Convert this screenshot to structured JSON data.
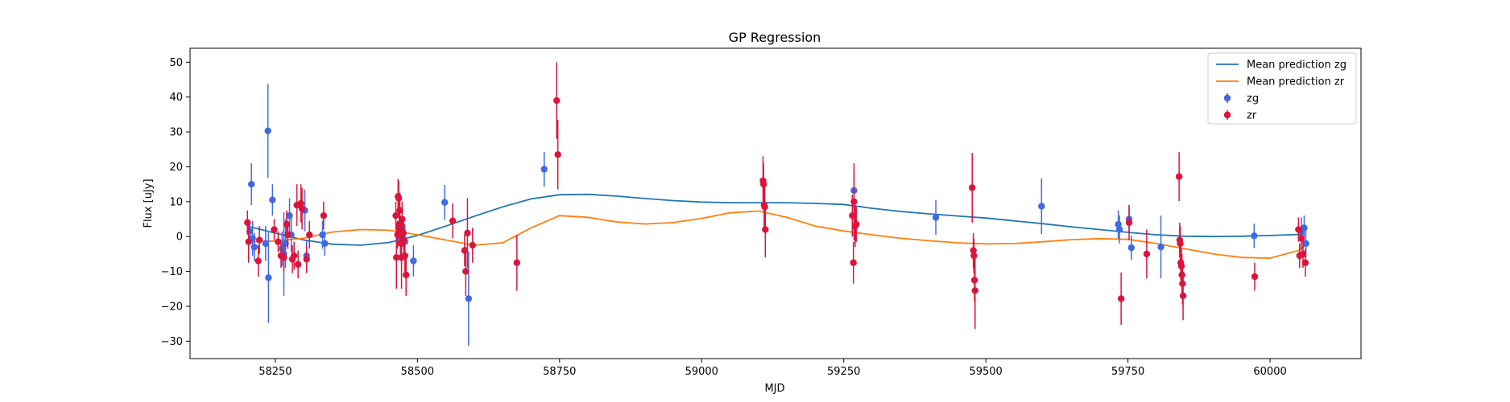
{
  "chart_data": {
    "type": "scatter",
    "title": "GP Regression",
    "xlabel": "MJD",
    "ylabel": "Flux [uJy]",
    "xlim": [
      58100,
      60160
    ],
    "ylim": [
      -35,
      54
    ],
    "xticks": [
      58250,
      58500,
      58750,
      59000,
      59250,
      59500,
      59750,
      60000
    ],
    "yticks": [
      -30,
      -20,
      -10,
      0,
      10,
      20,
      30,
      40,
      50
    ],
    "legend_position": "upper right",
    "lines": [
      {
        "name": "Mean prediction zg",
        "color": "#1f77b4",
        "x": [
          58200,
          58250,
          58300,
          58350,
          58400,
          58450,
          58500,
          58550,
          58600,
          58650,
          58700,
          58750,
          58800,
          58850,
          58900,
          58950,
          59000,
          59050,
          59100,
          59150,
          59200,
          59250,
          59300,
          59350,
          59400,
          59450,
          59500,
          59550,
          59600,
          59650,
          59700,
          59750,
          59800,
          59850,
          59900,
          59950,
          60000,
          60050,
          60060
        ],
        "y": [
          3.0,
          1.0,
          -1.0,
          -2.2,
          -2.5,
          -1.7,
          0.3,
          3.0,
          5.8,
          8.5,
          10.8,
          12.0,
          12.1,
          11.6,
          10.9,
          10.3,
          9.9,
          9.7,
          9.7,
          9.7,
          9.5,
          9.2,
          8.1,
          7.2,
          6.5,
          5.9,
          5.3,
          4.5,
          3.7,
          2.8,
          2.0,
          1.2,
          0.5,
          0.1,
          0.0,
          0.1,
          0.3,
          0.6,
          0.7
        ]
      },
      {
        "name": "Mean prediction zr",
        "color": "#ff7f0e",
        "x": [
          58200,
          58250,
          58300,
          58350,
          58400,
          58450,
          58500,
          58550,
          58600,
          58650,
          58700,
          58750,
          58800,
          58850,
          58900,
          58950,
          59000,
          59050,
          59100,
          59150,
          59200,
          59250,
          59300,
          59350,
          59400,
          59450,
          59500,
          59550,
          59600,
          59650,
          59700,
          59750,
          59800,
          59850,
          59900,
          59950,
          60000,
          60050,
          60060
        ],
        "y": [
          -1.5,
          -1.3,
          -0.5,
          1.3,
          2.0,
          1.8,
          0.5,
          -1.0,
          -2.5,
          -1.8,
          2.5,
          6.0,
          5.5,
          4.2,
          3.6,
          4.0,
          5.2,
          6.8,
          7.3,
          5.5,
          3.0,
          1.6,
          0.5,
          -0.5,
          -1.2,
          -1.8,
          -2.1,
          -2.0,
          -1.5,
          -0.9,
          -0.6,
          -0.8,
          -2.0,
          -3.5,
          -5.0,
          -6.0,
          -6.2,
          -4.0,
          -2.8
        ]
      }
    ],
    "series": [
      {
        "name": "zg",
        "color": "#4169e1",
        "points": [
          [
            58205,
            1.5,
            3
          ],
          [
            58208,
            15.0,
            6
          ],
          [
            58210,
            -0.5,
            5
          ],
          [
            58213,
            -3.0,
            4
          ],
          [
            58233,
            -2.0,
            5
          ],
          [
            58237,
            30.3,
            13.5
          ],
          [
            58238,
            -11.8,
            13
          ],
          [
            58245,
            10.5,
            4.5
          ],
          [
            58262,
            -3.5,
            5
          ],
          [
            58265,
            -5.0,
            12
          ],
          [
            58268,
            -2.0,
            7
          ],
          [
            58275,
            6.0,
            5
          ],
          [
            58278,
            0.5,
            5
          ],
          [
            58302,
            7.5,
            6
          ],
          [
            58305,
            -5.5,
            4.5
          ],
          [
            58333,
            0.5,
            4
          ],
          [
            58337,
            -2.0,
            3.5
          ],
          [
            58470,
            -0.5,
            5
          ],
          [
            58478,
            -1.5,
            5
          ],
          [
            58493,
            -7.0,
            4.5
          ],
          [
            58548,
            9.8,
            5
          ],
          [
            58590,
            -17.8,
            13.5
          ],
          [
            58723,
            19.3,
            5
          ],
          [
            59268,
            13.2,
            5
          ],
          [
            59412,
            5.5,
            5
          ],
          [
            59598,
            8.7,
            8
          ],
          [
            59733,
            3.5,
            4
          ],
          [
            59735,
            2.0,
            4
          ],
          [
            59752,
            5.0,
            4
          ],
          [
            59756,
            -3.2,
            3.5
          ],
          [
            59808,
            -3.0,
            9
          ],
          [
            59972,
            0.2,
            3.5
          ],
          [
            60055,
            1.5,
            4
          ],
          [
            60060,
            2.5,
            3.5
          ],
          [
            60063,
            -2.0,
            4
          ]
        ]
      },
      {
        "name": "zr",
        "color": "#dc143c",
        "points": [
          [
            58201,
            4.0,
            3.5
          ],
          [
            58203,
            -1.5,
            6
          ],
          [
            58220,
            -7.0,
            4.5
          ],
          [
            58222,
            -1.0,
            4
          ],
          [
            58248,
            2.0,
            3
          ],
          [
            58255,
            -1.5,
            3
          ],
          [
            58260,
            -5.5,
            3.5
          ],
          [
            58265,
            -6.0,
            4
          ],
          [
            58270,
            3.5,
            4
          ],
          [
            58272,
            0.5,
            4
          ],
          [
            58280,
            -6.5,
            4
          ],
          [
            58283,
            -5.5,
            4
          ],
          [
            58288,
            9.0,
            6
          ],
          [
            58290,
            -8.0,
            4
          ],
          [
            58295,
            9.5,
            5.5
          ],
          [
            58297,
            8.0,
            6
          ],
          [
            58305,
            -6.5,
            4
          ],
          [
            58310,
            0.5,
            4
          ],
          [
            58335,
            6.0,
            4
          ],
          [
            58462,
            6.0,
            4
          ],
          [
            58463,
            -6.0,
            9
          ],
          [
            58465,
            0.5,
            4
          ],
          [
            58466,
            11.5,
            5
          ],
          [
            58467,
            11.0,
            5
          ],
          [
            58468,
            3.5,
            4
          ],
          [
            58469,
            7.5,
            5
          ],
          [
            58470,
            2.0,
            4
          ],
          [
            58471,
            -2.0,
            5
          ],
          [
            58472,
            -6.0,
            9
          ],
          [
            58473,
            5.0,
            5
          ],
          [
            58475,
            1.0,
            4
          ],
          [
            58476,
            -1.0,
            5
          ],
          [
            58478,
            -5.5,
            5
          ],
          [
            58480,
            -11.0,
            6
          ],
          [
            58562,
            4.5,
            5
          ],
          [
            58583,
            -4.0,
            4.5
          ],
          [
            58585,
            -10.0,
            7
          ],
          [
            58588,
            1.0,
            10
          ],
          [
            58597,
            -2.5,
            5
          ],
          [
            58675,
            -7.5,
            8
          ],
          [
            58745,
            39.0,
            11
          ],
          [
            58747,
            23.5,
            10
          ],
          [
            59108,
            16.0,
            7
          ],
          [
            59109,
            15.0,
            6
          ],
          [
            59110,
            9.0,
            7
          ],
          [
            59111,
            8.5,
            6
          ],
          [
            59112,
            2.0,
            8
          ],
          [
            59265,
            6.0,
            6
          ],
          [
            59267,
            -7.5,
            6
          ],
          [
            59268,
            10.0,
            11
          ],
          [
            59270,
            3.0,
            6
          ],
          [
            59272,
            3.5,
            5
          ],
          [
            59476,
            14.0,
            10
          ],
          [
            59478,
            -4.0,
            5
          ],
          [
            59479,
            -5.5,
            5
          ],
          [
            59480,
            -12.5,
            6
          ],
          [
            59481,
            -15.5,
            11
          ],
          [
            59738,
            -17.8,
            7.5
          ],
          [
            59752,
            4.0,
            5
          ],
          [
            59783,
            -5.0,
            7
          ],
          [
            59840,
            17.2,
            7
          ],
          [
            59841,
            -1.0,
            5
          ],
          [
            59842,
            -2.0,
            5
          ],
          [
            59843,
            -7.5,
            5
          ],
          [
            59844,
            -8.5,
            5
          ],
          [
            59845,
            -11.0,
            6
          ],
          [
            59846,
            -13.5,
            6
          ],
          [
            59847,
            -17.0,
            7
          ],
          [
            59973,
            -11.5,
            4
          ],
          [
            60050,
            2.0,
            3.5
          ],
          [
            60052,
            -5.5,
            3.5
          ],
          [
            60055,
            -0.5,
            3.5
          ],
          [
            60058,
            -5.0,
            4
          ],
          [
            60062,
            -7.5,
            4
          ]
        ]
      }
    ]
  }
}
